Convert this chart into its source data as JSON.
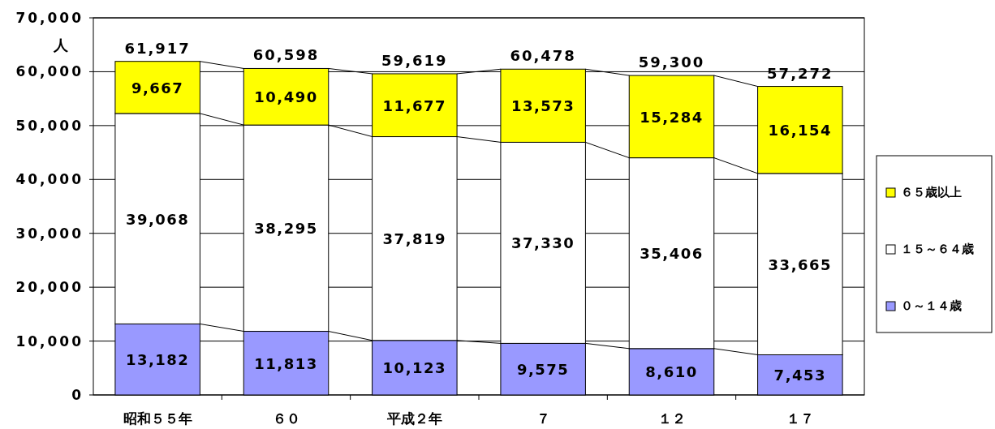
{
  "chart_data": {
    "type": "bar",
    "stacked": true,
    "ylabel": "人",
    "categories": [
      "昭和５５年",
      "６０",
      "平成２年",
      "７",
      "１２",
      "１７"
    ],
    "series": [
      {
        "name": "０～１４歳",
        "color": "#9999ff",
        "values": [
          13182,
          11813,
          10123,
          9575,
          8610,
          7453
        ],
        "value_labels": [
          "13,182",
          "11,813",
          "10,123",
          "9,575",
          "8,610",
          "7,453"
        ]
      },
      {
        "name": "１５～６４歳",
        "color": "#ffffff",
        "values": [
          39068,
          38295,
          37819,
          37330,
          35406,
          33665
        ],
        "value_labels": [
          "39,068",
          "38,295",
          "37,819",
          "37,330",
          "35,406",
          "33,665"
        ]
      },
      {
        "name": "６５歳以上",
        "color": "#ffff00",
        "values": [
          9667,
          10490,
          11677,
          13573,
          15284,
          16154
        ],
        "value_labels": [
          "9,667",
          "10,490",
          "11,677",
          "13,573",
          "15,284",
          "16,154"
        ]
      }
    ],
    "totals": [
      "61,917",
      "60,598",
      "59,619",
      "60,478",
      "59,300",
      "57,272"
    ],
    "ylim": [
      0,
      70000
    ],
    "yticks": [
      0,
      {
        "value": 10000,
        "label": "10,000"
      },
      {
        "value": 20000,
        "label": "20,000"
      },
      {
        "value": 30000,
        "label": "30,000"
      },
      {
        "value": 40000,
        "label": "40,000"
      },
      {
        "value": 50000,
        "label": "50,000"
      },
      {
        "value": 60000,
        "label": "60,000"
      },
      {
        "value": 70000,
        "label": "70,000"
      }
    ],
    "grid": "y",
    "legend": "right"
  }
}
